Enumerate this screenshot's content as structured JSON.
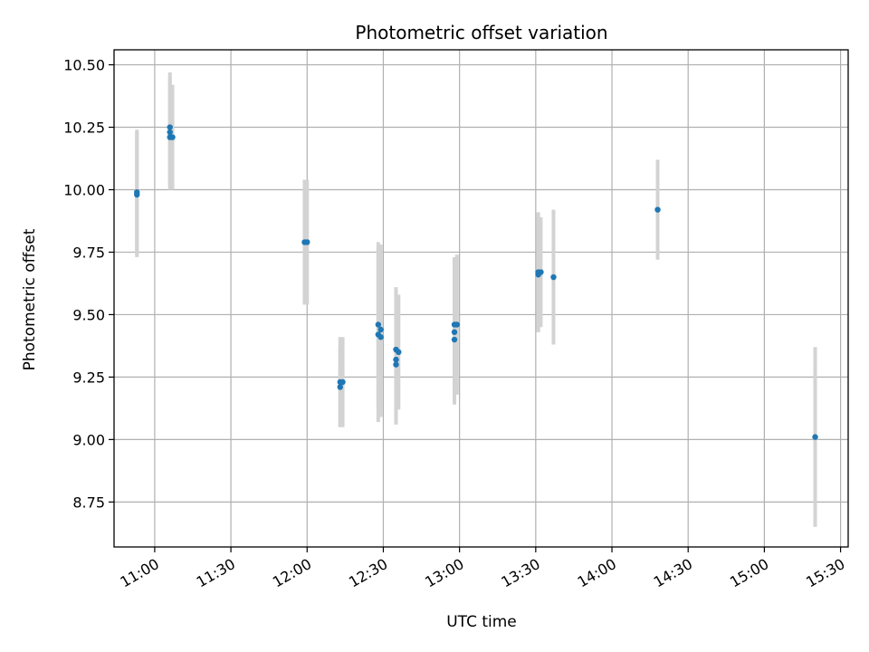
{
  "chart_data": {
    "type": "scatter",
    "title": "Photometric offset variation",
    "xlabel": "UTC time",
    "ylabel": "Photometric offset",
    "x_ticks": [
      "11:00",
      "11:30",
      "12:00",
      "12:30",
      "13:00",
      "13:30",
      "14:00",
      "14:30",
      "15:00",
      "15:30"
    ],
    "y_ticks": [
      "8.75",
      "9.00",
      "9.25",
      "9.50",
      "9.75",
      "10.00",
      "10.25",
      "10.50"
    ],
    "xlim": [
      "10:44",
      "15:33"
    ],
    "ylim": [
      8.57,
      10.56
    ],
    "grid": true,
    "marker_color": "#1f77b4",
    "errorbar_color": "#d3d3d3",
    "points": [
      {
        "x": "10:53",
        "y": 9.98,
        "err": 0.25
      },
      {
        "x": "10:53",
        "y": 9.99,
        "err": 0.25
      },
      {
        "x": "11:06",
        "y": 10.25,
        "err": 0.22
      },
      {
        "x": "11:06",
        "y": 10.23,
        "err": 0.22
      },
      {
        "x": "11:06",
        "y": 10.21,
        "err": 0.21
      },
      {
        "x": "11:07",
        "y": 10.21,
        "err": 0.21
      },
      {
        "x": "11:59",
        "y": 9.79,
        "err": 0.25
      },
      {
        "x": "12:00",
        "y": 9.79,
        "err": 0.25
      },
      {
        "x": "12:13",
        "y": 9.21,
        "err": 0.16
      },
      {
        "x": "12:13",
        "y": 9.23,
        "err": 0.18
      },
      {
        "x": "12:14",
        "y": 9.23,
        "err": 0.18
      },
      {
        "x": "12:28",
        "y": 9.46,
        "err": 0.33
      },
      {
        "x": "12:28",
        "y": 9.42,
        "err": 0.35
      },
      {
        "x": "12:29",
        "y": 9.44,
        "err": 0.34
      },
      {
        "x": "12:29",
        "y": 9.41,
        "err": 0.32
      },
      {
        "x": "12:35",
        "y": 9.36,
        "err": 0.25
      },
      {
        "x": "12:35",
        "y": 9.32,
        "err": 0.25
      },
      {
        "x": "12:35",
        "y": 9.3,
        "err": 0.24
      },
      {
        "x": "12:36",
        "y": 9.35,
        "err": 0.23
      },
      {
        "x": "12:58",
        "y": 9.46,
        "err": 0.27
      },
      {
        "x": "12:58",
        "y": 9.43,
        "err": 0.29
      },
      {
        "x": "12:58",
        "y": 9.4,
        "err": 0.25
      },
      {
        "x": "12:59",
        "y": 9.46,
        "err": 0.28
      },
      {
        "x": "13:31",
        "y": 9.67,
        "err": 0.24
      },
      {
        "x": "13:31",
        "y": 9.66,
        "err": 0.23
      },
      {
        "x": "13:32",
        "y": 9.67,
        "err": 0.22
      },
      {
        "x": "13:37",
        "y": 9.65,
        "err": 0.27
      },
      {
        "x": "14:18",
        "y": 9.92,
        "err": 0.2
      },
      {
        "x": "15:20",
        "y": 9.01,
        "err": 0.36
      }
    ]
  }
}
